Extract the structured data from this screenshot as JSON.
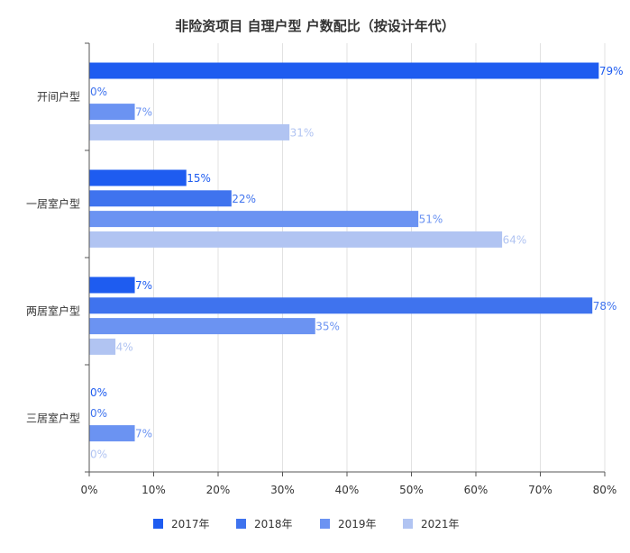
{
  "colors": {
    "series": [
      "#1e5cf0",
      "#3f73ee",
      "#6b93f2",
      "#b1c4f2"
    ],
    "axis": "#555555",
    "grid": "#e2e2e2",
    "text": "#333333"
  },
  "chart_data": {
    "type": "bar",
    "orientation": "horizontal",
    "title": "非险资项目 自理户型 户数配比（按设计年代）",
    "xlabel": "",
    "ylabel": "",
    "categories": [
      "开间户型",
      "一居室户型",
      "两居室户型",
      "三居室户型"
    ],
    "series": [
      {
        "name": "2017年",
        "values": [
          79,
          15,
          7,
          0
        ],
        "labels": [
          "79%",
          "15%",
          "7%",
          "0%"
        ]
      },
      {
        "name": "2018年",
        "values": [
          0,
          22,
          78,
          0
        ],
        "labels": [
          "0%",
          "22%",
          "78%",
          "0%"
        ]
      },
      {
        "name": "2019年",
        "values": [
          7,
          51,
          35,
          7
        ],
        "labels": [
          "7%",
          "51%",
          "35%",
          "7%"
        ]
      },
      {
        "name": "2021年",
        "values": [
          31,
          64,
          4,
          0
        ],
        "labels": [
          "31%",
          "64%",
          "4%",
          "0%"
        ]
      }
    ],
    "xlim": [
      0,
      80
    ],
    "xticks": [
      "0%",
      "10%",
      "20%",
      "30%",
      "40%",
      "50%",
      "60%",
      "70%",
      "80%"
    ],
    "grid": true,
    "legend_position": "bottom"
  }
}
